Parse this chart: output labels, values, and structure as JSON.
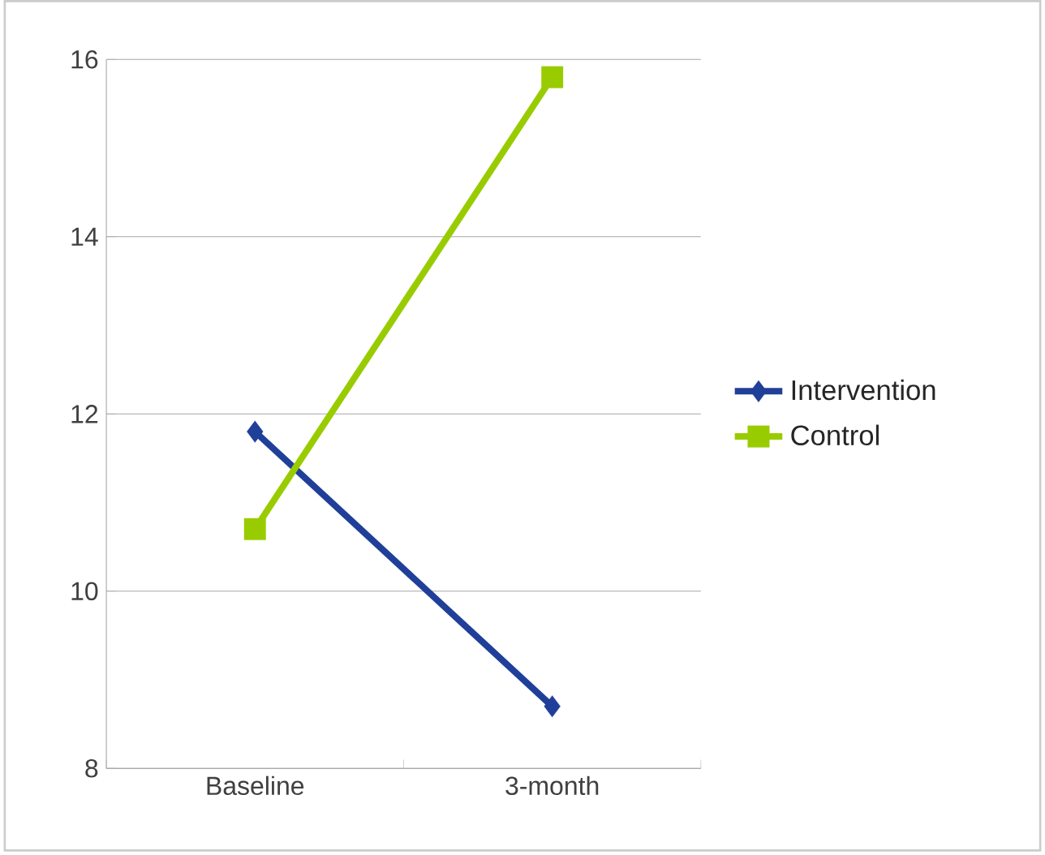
{
  "chart_data": {
    "type": "line",
    "categories": [
      "Baseline",
      "3-month"
    ],
    "series": [
      {
        "name": "Intervention",
        "color": "#1f3f99",
        "marker": "diamond",
        "values": [
          11.8,
          8.7
        ]
      },
      {
        "name": "Control",
        "color": "#99cc00",
        "marker": "square",
        "values": [
          10.7,
          15.8
        ]
      }
    ],
    "ylim": [
      8,
      16
    ],
    "yticks": [
      8,
      10,
      12,
      14,
      16
    ],
    "grid": "y",
    "legend": "right"
  }
}
